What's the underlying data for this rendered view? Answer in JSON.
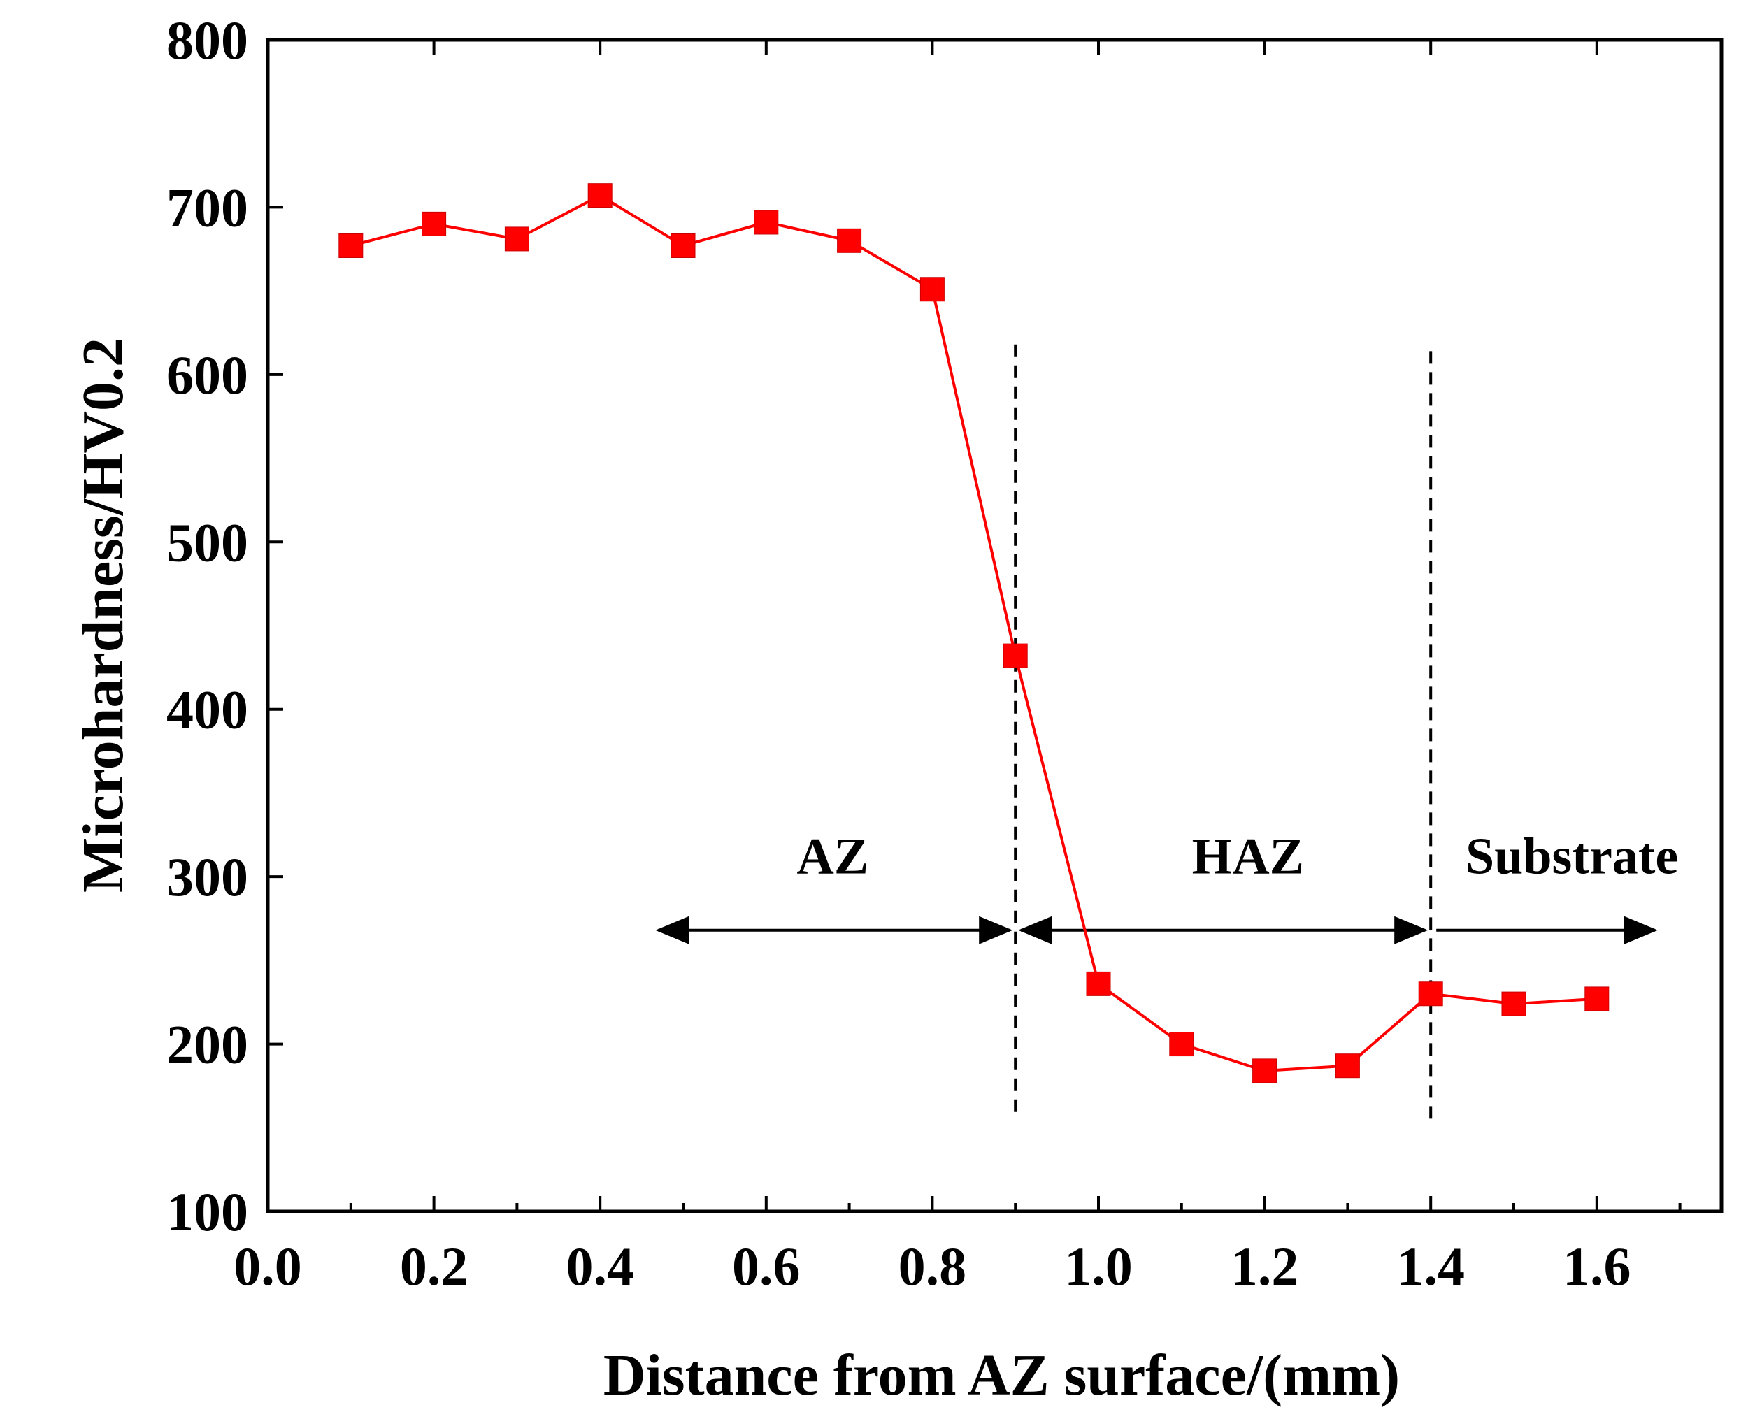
{
  "chart_data": {
    "type": "line",
    "title": "",
    "xlabel": "Distance from AZ surface/(mm)",
    "ylabel": "Microhardness/HV0.2",
    "xlim": [
      0.0,
      1.75
    ],
    "ylim": [
      100,
      800
    ],
    "x_ticks": [
      0.0,
      0.2,
      0.4,
      0.6,
      0.8,
      1.0,
      1.2,
      1.4,
      1.6
    ],
    "x_tick_labels": [
      "0.0",
      "0.2",
      "0.4",
      "0.6",
      "0.8",
      "1.0",
      "1.2",
      "1.4",
      "1.6"
    ],
    "y_ticks": [
      100,
      200,
      300,
      400,
      500,
      600,
      700,
      800
    ],
    "y_tick_labels": [
      "100",
      "200",
      "300",
      "400",
      "500",
      "600",
      "700",
      "800"
    ],
    "grid": false,
    "legend": "none",
    "series": [
      {
        "name": "Microhardness",
        "color": "#ff0000",
        "marker": "square",
        "x": [
          0.1,
          0.2,
          0.3,
          0.4,
          0.5,
          0.6,
          0.7,
          0.8,
          0.9,
          1.0,
          1.1,
          1.2,
          1.3,
          1.4,
          1.5,
          1.6
        ],
        "values": [
          677,
          690,
          681,
          707,
          677,
          691,
          680,
          651,
          432,
          236,
          200,
          184,
          187,
          230,
          224,
          227
        ]
      }
    ],
    "boundaries": [
      {
        "x": 0.9,
        "y_range": [
          155,
          618
        ],
        "style": "dashed"
      },
      {
        "x": 1.4,
        "y_range": [
          152,
          614
        ],
        "style": "dashed"
      }
    ],
    "regions": [
      {
        "label": "AZ",
        "x_range": [
          0.47,
          0.9
        ],
        "label_x": 0.68,
        "arrows": "both"
      },
      {
        "label": "HAZ",
        "x_range": [
          0.9,
          1.4
        ],
        "label_x": 1.18,
        "arrows": "both"
      },
      {
        "label": "Substrate",
        "x_range": [
          1.4,
          1.67
        ],
        "label_x": 1.57,
        "arrows": "right"
      }
    ],
    "region_arrow_y": 268,
    "region_label_y": 302
  }
}
